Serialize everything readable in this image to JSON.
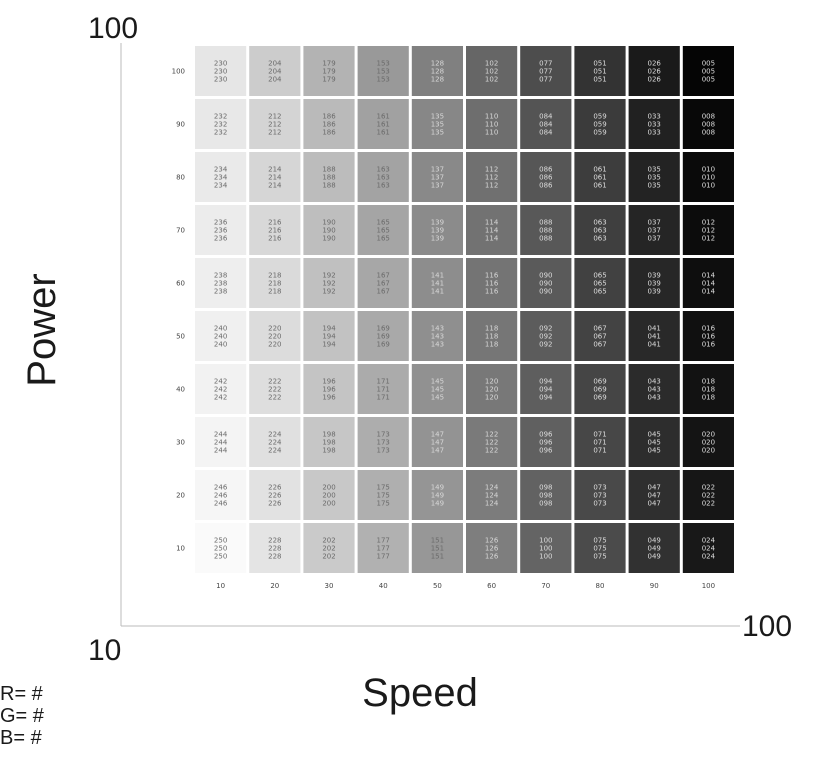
{
  "chart_data": {
    "type": "heatmap",
    "xlabel": "Speed",
    "ylabel": "Power",
    "axis_min_label": "10",
    "x_axis_max_label": "100",
    "y_axis_max_label": "100",
    "x_ticks": [
      "10",
      "20",
      "30",
      "40",
      "50",
      "60",
      "70",
      "80",
      "90",
      "100"
    ],
    "y_ticks": [
      "100",
      "90",
      "80",
      "70",
      "60",
      "50",
      "40",
      "30",
      "20",
      "10"
    ],
    "grid_values": [
      [
        "230",
        "204",
        "179",
        "153",
        "128",
        "102",
        "077",
        "051",
        "026",
        "005"
      ],
      [
        "232",
        "212",
        "186",
        "161",
        "135",
        "110",
        "084",
        "059",
        "033",
        "008"
      ],
      [
        "234",
        "214",
        "188",
        "163",
        "137",
        "112",
        "086",
        "061",
        "035",
        "010"
      ],
      [
        "236",
        "216",
        "190",
        "165",
        "139",
        "114",
        "088",
        "063",
        "037",
        "012"
      ],
      [
        "238",
        "218",
        "192",
        "167",
        "141",
        "116",
        "090",
        "065",
        "039",
        "014"
      ],
      [
        "240",
        "220",
        "194",
        "169",
        "143",
        "118",
        "092",
        "067",
        "041",
        "016"
      ],
      [
        "242",
        "222",
        "196",
        "171",
        "145",
        "120",
        "094",
        "069",
        "043",
        "018"
      ],
      [
        "244",
        "224",
        "198",
        "173",
        "147",
        "122",
        "096",
        "071",
        "045",
        "020"
      ],
      [
        "246",
        "226",
        "200",
        "175",
        "149",
        "124",
        "098",
        "073",
        "047",
        "022"
      ],
      [
        "250",
        "228",
        "202",
        "177",
        "151",
        "126",
        "100",
        "075",
        "049",
        "024"
      ]
    ],
    "grid": false
  },
  "legend": {
    "r": "R= #",
    "g": "G= #",
    "b": "B= #"
  }
}
